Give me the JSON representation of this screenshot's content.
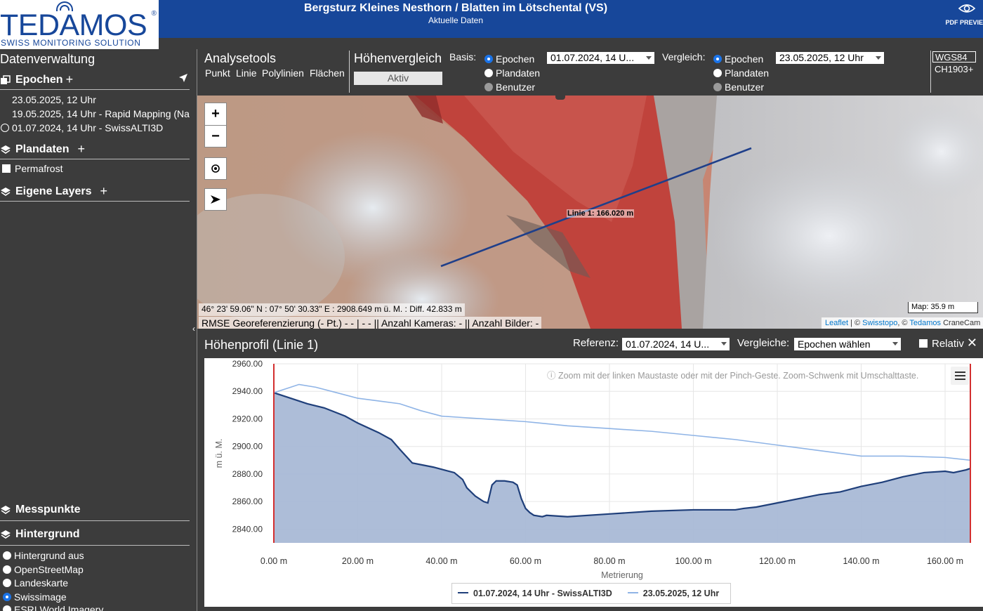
{
  "logo": {
    "brand": "TEDAMOS",
    "reg": "®",
    "tagline": "SWISS MONITORING SOLUTION"
  },
  "header": {
    "title": "Bergsturz Kleines Nesthorn / Blatten im Lötschental (VS)",
    "subtitle": "Aktuelle Daten",
    "pdf_label": "PDF PREVIE"
  },
  "sidebar": {
    "title": "Datenverwaltung",
    "epochen": {
      "label": "Epochen",
      "items": [
        "23.05.2025, 12 Uhr",
        "19.05.2025, 14 Uhr - Rapid Mapping (Na",
        "01.07.2024, 14 Uhr - SwissALTI3D"
      ]
    },
    "plandaten": {
      "label": "Plandaten",
      "items": [
        "Permafrost"
      ]
    },
    "eigene_layers": {
      "label": "Eigene Layers"
    },
    "messpunkte": {
      "label": "Messpunkte"
    },
    "hintergrund": {
      "label": "Hintergrund",
      "items": [
        "Hintergrund aus",
        "OpenStreetMap",
        "Landeskarte",
        "Swissimage",
        "ESRI World Imagery"
      ],
      "selected": "Swissimage"
    }
  },
  "toolbar": {
    "analysetools": {
      "label": "Analysetools",
      "tools": [
        "Punkt",
        "Linie",
        "Polylinien",
        "Flächen"
      ]
    },
    "hoehenvergleich": {
      "label": "Höhenvergleich",
      "status": "Aktiv"
    },
    "basis": {
      "label": "Basis:",
      "options": [
        "Epochen",
        "Plandaten",
        "Benutzer"
      ],
      "selected": "Epochen",
      "value": "01.07.2024, 14 U..."
    },
    "vergleich": {
      "label": "Vergleich:",
      "options": [
        "Epochen",
        "Plandaten",
        "Benutzer"
      ],
      "selected": "Epochen",
      "value": "23.05.2025, 12 Uhr"
    },
    "crs": [
      "WGS84",
      "CH1903+"
    ]
  },
  "map": {
    "zoom_in": "+",
    "zoom_out": "−",
    "line_label": "Linie 1: 166.020 m",
    "coord_text": "46° 23' 59.06\" N : 07° 50' 30.33\" E : 2908.649 m ü. M. : Diff. 42.833 m",
    "rmse_text": "RMSE Georeferenzierung (- Pt.) - - | - - || Anzahl Kameras: - || Anzahl Bilder: -",
    "scale": "Map: 35.9 m",
    "attribution": {
      "leaflet": "Leaflet",
      "sep1": " | © ",
      "swisstopo": "Swisstopo",
      "sep2": ", © ",
      "tedamos": "Tedamos",
      "rest": " CraneCam"
    }
  },
  "profile": {
    "title": "Höhenprofil (Linie 1)",
    "referenz_label": "Referenz:",
    "referenz_value": "01.07.2024, 14 U...",
    "vergleiche_label": "Vergleiche:",
    "vergleiche_value": "Epochen wählen",
    "relativ_label": "Relativ",
    "close": "✕",
    "zoom_hint": "ⓘ Zoom mit der linken Maustaste oder mit der Pinch-Geste. Zoom-Schwenk mit Umschalttaste."
  },
  "chart_data": {
    "type": "area",
    "xlabel": "Metrierung",
    "ylabel": "m ü. M.",
    "xlim": [
      0,
      166.02
    ],
    "ylim": [
      2830,
      2960
    ],
    "xticks": [
      "0.00 m",
      "20.00 m",
      "40.00 m",
      "60.00 m",
      "80.00 m",
      "100.00 m",
      "120.00 m",
      "140.00 m",
      "160.00 m"
    ],
    "xtick_values": [
      0,
      20,
      40,
      60,
      80,
      100,
      120,
      140,
      160
    ],
    "yticks": [
      "2960.00",
      "2940.00",
      "2920.00",
      "2900.00",
      "2880.00",
      "2860.00",
      "2840.00"
    ],
    "ytick_values": [
      2960,
      2940,
      2920,
      2900,
      2880,
      2860,
      2840
    ],
    "legend_position": "bottom-center",
    "series": [
      {
        "name": "01.07.2024, 14 Uhr - SwissALTI3D",
        "color": "#1f3f7a",
        "fill": "#a9b9d6",
        "x": [
          0,
          3,
          8,
          12,
          17,
          20,
          25,
          28,
          30,
          33,
          38,
          43,
          45,
          46,
          48,
          50,
          51,
          52,
          53,
          55,
          57,
          58,
          59,
          60,
          61,
          62,
          64,
          65,
          70,
          80,
          90,
          100,
          110,
          112,
          115,
          120,
          125,
          130,
          135,
          140,
          145,
          150,
          155,
          160,
          162,
          165,
          166
        ],
        "y": [
          2939,
          2936,
          2931,
          2928,
          2922,
          2917,
          2910,
          2905,
          2898,
          2888,
          2885,
          2881,
          2876,
          2870,
          2864,
          2860,
          2859,
          2872,
          2875,
          2875,
          2874,
          2872,
          2862,
          2855,
          2852,
          2850,
          2849,
          2850,
          2849,
          2851,
          2853,
          2854,
          2854,
          2855,
          2856,
          2859,
          2862,
          2865,
          2867,
          2871,
          2874,
          2878,
          2881,
          2882,
          2881,
          2883,
          2884
        ]
      },
      {
        "name": "23.05.2025, 12 Uhr",
        "color": "#8fb4e6",
        "x": [
          0,
          4,
          6,
          10,
          15,
          20,
          25,
          30,
          35,
          40,
          45,
          50,
          60,
          70,
          80,
          90,
          100,
          110,
          120,
          130,
          140,
          150,
          160,
          166
        ],
        "y": [
          2939,
          2943,
          2945,
          2943,
          2939,
          2935,
          2933,
          2931,
          2926,
          2922,
          2921,
          2920,
          2918,
          2915,
          2913,
          2911,
          2908,
          2905,
          2901,
          2897,
          2893,
          2893,
          2892,
          2890
        ]
      }
    ]
  }
}
